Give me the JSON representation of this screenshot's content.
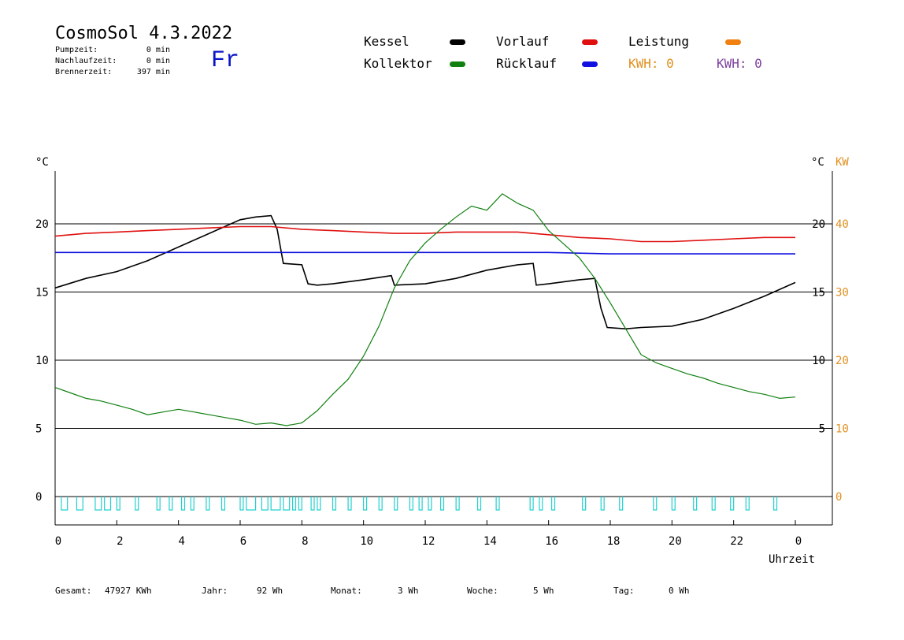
{
  "header": {
    "title": "CosmoSol 4.3.2022",
    "day": "Fr",
    "stats": [
      {
        "label": "Pumpzeit:",
        "value": "0 min"
      },
      {
        "label": "Nachlaufzeit:",
        "value": "0 min"
      },
      {
        "label": "Brennerzeit:",
        "value": "397 min"
      }
    ]
  },
  "legend": {
    "items": [
      {
        "label": "Kessel",
        "color": "#000000"
      },
      {
        "label": "Vorlauf",
        "color": "#e01010"
      },
      {
        "label": "Leistung",
        "color": "#f08010"
      },
      {
        "label": "Kollektor",
        "color": "#108010"
      },
      {
        "label": "Rücklauf",
        "color": "#1010e0"
      }
    ],
    "kwh1": {
      "label": "KWH: 0",
      "color": "#e09020"
    },
    "kwh2": {
      "label": "KWH: 0",
      "color": "#8040a0"
    }
  },
  "footer": {
    "gesamt_label": "Gesamt:",
    "gesamt_value": "47927 KWh",
    "jahr_label": "Jahr:",
    "jahr_value": "92 Wh",
    "monat_label": "Monat:",
    "monat_value": "3 Wh",
    "woche_label": "Woche:",
    "woche_value": "5 Wh",
    "tag_label": "Tag:",
    "tag_value": "0 Wh"
  },
  "chart_data": {
    "type": "line",
    "ylabel_left": "°C",
    "ylabel_right": "°C",
    "ylabel_right2": "KW",
    "xlabel": "Uhrzeit",
    "x_ticks": [
      "0",
      "2",
      "4",
      "6",
      "8",
      "10",
      "12",
      "14",
      "16",
      "18",
      "20",
      "22",
      "0"
    ],
    "y_left_ticks": [
      "0",
      "5",
      "10",
      "15",
      "20"
    ],
    "y_right_ticks": [
      "5",
      "10",
      "15",
      "20"
    ],
    "y_right2_ticks": [
      "0",
      "10",
      "20",
      "30",
      "40"
    ],
    "xlim": [
      0,
      24
    ],
    "ylim": [
      -2,
      24
    ],
    "grid": [
      5,
      10,
      15,
      20
    ],
    "series": [
      {
        "name": "Kessel",
        "color": "#000000",
        "x": [
          0,
          1,
          2,
          3,
          4,
          5,
          6,
          6.5,
          7,
          7.2,
          7.4,
          8,
          8.2,
          8.5,
          9,
          10,
          10.9,
          11,
          12,
          13,
          14,
          15,
          15.5,
          15.6,
          16,
          17,
          17.5,
          17.7,
          17.9,
          18.5,
          19,
          20,
          21,
          22,
          23,
          24
        ],
        "y": [
          15.3,
          16,
          16.5,
          17.3,
          18.3,
          19.3,
          20.3,
          20.5,
          20.6,
          19.6,
          17.1,
          17,
          15.6,
          15.5,
          15.6,
          15.9,
          16.2,
          15.5,
          15.6,
          16,
          16.6,
          17,
          17.1,
          15.5,
          15.6,
          15.9,
          16,
          13.8,
          12.4,
          12.3,
          12.4,
          12.5,
          13,
          13.8,
          14.7,
          15.7
        ]
      },
      {
        "name": "Vorlauf",
        "color": "#e01010",
        "x": [
          0,
          1,
          2,
          3,
          4,
          5,
          6,
          7,
          8,
          9,
          10,
          11,
          12,
          13,
          14,
          15,
          16,
          17,
          18,
          19,
          20,
          21,
          22,
          23,
          24
        ],
        "y": [
          19.1,
          19.3,
          19.4,
          19.5,
          19.6,
          19.7,
          19.8,
          19.8,
          19.6,
          19.5,
          19.4,
          19.3,
          19.3,
          19.4,
          19.4,
          19.4,
          19.2,
          19.0,
          18.9,
          18.7,
          18.7,
          18.8,
          18.9,
          19.0,
          19.0
        ]
      },
      {
        "name": "Rücklauf",
        "color": "#1010e0",
        "x": [
          0,
          2,
          4,
          6,
          8,
          10,
          12,
          14,
          16,
          18,
          20,
          22,
          24
        ],
        "y": [
          17.9,
          17.9,
          17.9,
          17.9,
          17.9,
          17.9,
          17.9,
          17.9,
          17.9,
          17.8,
          17.8,
          17.8,
          17.8
        ]
      },
      {
        "name": "Kollektor",
        "color": "#108010",
        "x": [
          0,
          0.5,
          1,
          1.5,
          2,
          2.5,
          3,
          3.5,
          4,
          4.5,
          5,
          5.5,
          6,
          6.5,
          7,
          7.5,
          8,
          8.5,
          9,
          9.5,
          10,
          10.5,
          11,
          11.5,
          12,
          12.5,
          13,
          13.5,
          14,
          14.5,
          15,
          15.5,
          16,
          16.5,
          17,
          17.5,
          18,
          18.5,
          19,
          19.5,
          20,
          20.5,
          21,
          21.5,
          22,
          22.5,
          23,
          23.5,
          24
        ],
        "y": [
          8.0,
          7.6,
          7.2,
          7.0,
          6.7,
          6.4,
          6.0,
          6.2,
          6.4,
          6.2,
          6.0,
          5.8,
          5.6,
          5.3,
          5.4,
          5.2,
          5.4,
          6.3,
          7.5,
          8.6,
          10.3,
          12.5,
          15.3,
          17.3,
          18.6,
          19.6,
          20.5,
          21.3,
          21.0,
          22.2,
          21.5,
          21.0,
          19.5,
          18.5,
          17.5,
          16.0,
          14.2,
          12.3,
          10.4,
          9.8,
          9.4,
          9.0,
          8.7,
          8.3,
          8.0,
          7.7,
          7.5,
          7.2,
          7.3
        ]
      }
    ],
    "pump_on_intervals": [
      [
        0.2,
        0.4
      ],
      [
        0.7,
        0.9
      ],
      [
        1.3,
        1.5
      ],
      [
        1.6,
        1.8
      ],
      [
        2.0,
        2.1
      ],
      [
        2.6,
        2.7
      ],
      [
        3.3,
        3.4
      ],
      [
        3.7,
        3.8
      ],
      [
        4.1,
        4.2
      ],
      [
        4.4,
        4.5
      ],
      [
        4.9,
        5.0
      ],
      [
        5.4,
        5.5
      ],
      [
        6.0,
        6.1
      ],
      [
        6.2,
        6.5
      ],
      [
        6.7,
        6.9
      ],
      [
        7.0,
        7.3
      ],
      [
        7.4,
        7.6
      ],
      [
        7.7,
        7.8
      ],
      [
        7.9,
        8.0
      ],
      [
        8.3,
        8.4
      ],
      [
        8.5,
        8.6
      ],
      [
        9.0,
        9.1
      ],
      [
        9.5,
        9.6
      ],
      [
        10.0,
        10.1
      ],
      [
        10.5,
        10.6
      ],
      [
        11.0,
        11.1
      ],
      [
        11.5,
        11.6
      ],
      [
        11.8,
        11.9
      ],
      [
        12.1,
        12.2
      ],
      [
        12.5,
        12.6
      ],
      [
        13.0,
        13.1
      ],
      [
        13.7,
        13.8
      ],
      [
        14.3,
        14.4
      ],
      [
        15.4,
        15.5
      ],
      [
        15.7,
        15.8
      ],
      [
        16.1,
        16.2
      ],
      [
        17.1,
        17.2
      ],
      [
        17.7,
        17.8
      ],
      [
        18.3,
        18.4
      ],
      [
        19.4,
        19.5
      ],
      [
        20.0,
        20.1
      ],
      [
        20.7,
        20.8
      ],
      [
        21.3,
        21.4
      ],
      [
        21.9,
        22.0
      ],
      [
        22.4,
        22.5
      ],
      [
        23.3,
        23.4
      ]
    ],
    "pump_level": 0
  }
}
